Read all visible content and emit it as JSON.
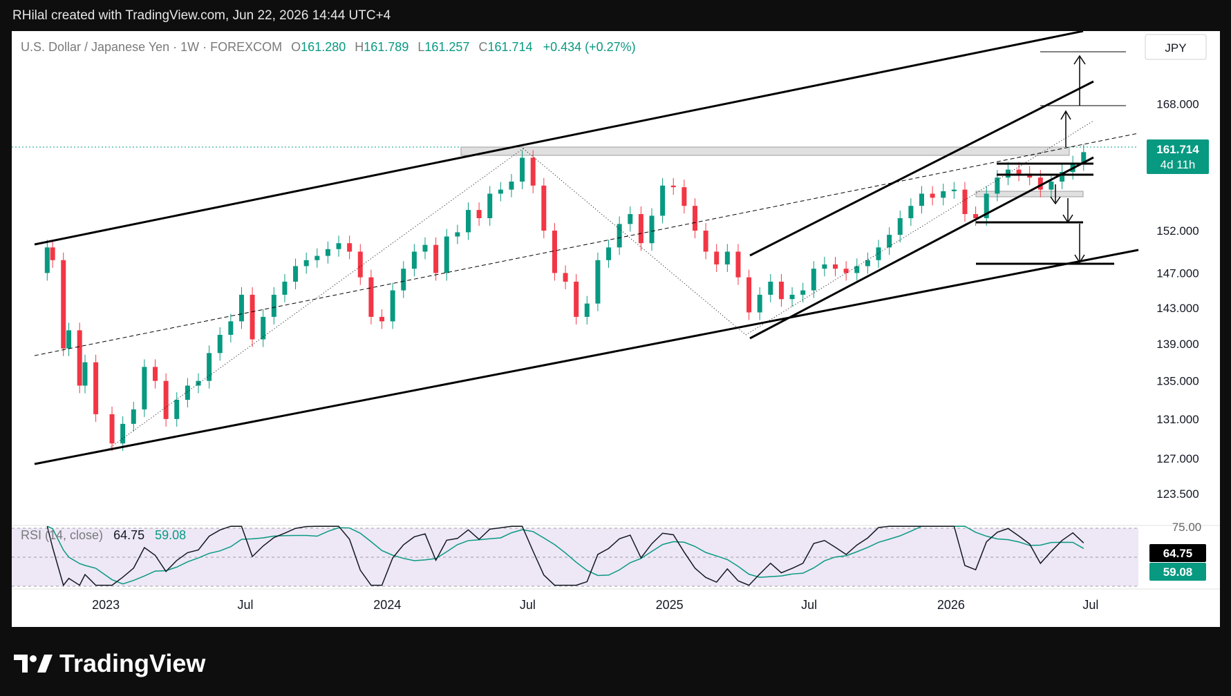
{
  "header": {
    "credit": "RHilal created with TradingView.com, Jun 22, 2026 14:44 UTC+4"
  },
  "legend": {
    "symbol": "U.S. Dollar / Japanese Yen · 1W · FOREXCOM",
    "open_label": "O",
    "open": "161.280",
    "high_label": "H",
    "high": "161.789",
    "low_label": "L",
    "low": "161.257",
    "close_label": "C",
    "close": "161.714",
    "change": "+0.434 (+0.27%)"
  },
  "rsi_legend": {
    "label": "RSI (14, close)",
    "rsi": "64.75",
    "ma": "59.08"
  },
  "price_axis": {
    "currency": "JPY",
    "ticks": [
      "168.000",
      "152.000",
      "147.000",
      "143.000",
      "139.000",
      "135.000",
      "131.000",
      "127.000",
      "123.500"
    ]
  },
  "price_badge": {
    "price": "161.714",
    "countdown": "4d 11h"
  },
  "rsi_axis": {
    "top_tick": "75.00",
    "rsi_value": "64.75",
    "ma_value": "59.08"
  },
  "time_axis": [
    "2023",
    "Jul",
    "2024",
    "Jul",
    "2025",
    "Jul",
    "2026",
    "Jul"
  ],
  "brand": {
    "name": "TradingView"
  },
  "colors": {
    "up": "#089981",
    "down": "#f23645",
    "rsi_line": "#131722",
    "rsi_ma": "#089981",
    "rsi_band": "#ede7f6"
  },
  "chart_data": {
    "type": "candlestick",
    "title": "U.S. Dollar / Japanese Yen · 1W · FOREXCOM",
    "x_range": [
      "2022-09",
      "2026-09"
    ],
    "ylim": [
      121.5,
      176
    ],
    "y_scale": "log",
    "points": [
      {
        "d": "2022-10-03",
        "c": 147
      },
      {
        "d": "2022-10-17",
        "c": 150
      },
      {
        "d": "2022-10-24",
        "c": 148.5
      },
      {
        "d": "2022-11-07",
        "c": 138.5
      },
      {
        "d": "2022-11-14",
        "c": 140.5
      },
      {
        "d": "2022-11-28",
        "c": 134.5
      },
      {
        "d": "2022-12-05",
        "c": 137
      },
      {
        "d": "2022-12-19",
        "c": 131.5
      },
      {
        "d": "2023-01-09",
        "c": 128.5
      },
      {
        "d": "2023-01-23",
        "c": 130.5
      },
      {
        "d": "2023-02-06",
        "c": 132
      },
      {
        "d": "2023-02-20",
        "c": 136.5
      },
      {
        "d": "2023-03-06",
        "c": 135
      },
      {
        "d": "2023-03-20",
        "c": 131
      },
      {
        "d": "2023-04-03",
        "c": 133
      },
      {
        "d": "2023-04-17",
        "c": 134.5
      },
      {
        "d": "2023-05-01",
        "c": 135
      },
      {
        "d": "2023-05-15",
        "c": 138
      },
      {
        "d": "2023-05-29",
        "c": 140
      },
      {
        "d": "2023-06-12",
        "c": 141.5
      },
      {
        "d": "2023-06-26",
        "c": 144.5
      },
      {
        "d": "2023-07-10",
        "c": 139.5
      },
      {
        "d": "2023-07-24",
        "c": 142
      },
      {
        "d": "2023-08-07",
        "c": 144.5
      },
      {
        "d": "2023-08-21",
        "c": 146
      },
      {
        "d": "2023-09-04",
        "c": 147.8
      },
      {
        "d": "2023-09-18",
        "c": 148.5
      },
      {
        "d": "2023-10-02",
        "c": 149
      },
      {
        "d": "2023-10-16",
        "c": 149.8
      },
      {
        "d": "2023-10-30",
        "c": 150.5
      },
      {
        "d": "2023-11-13",
        "c": 149.5
      },
      {
        "d": "2023-11-27",
        "c": 146.5
      },
      {
        "d": "2023-12-11",
        "c": 142
      },
      {
        "d": "2023-12-25",
        "c": 141.5
      },
      {
        "d": "2024-01-08",
        "c": 145
      },
      {
        "d": "2024-01-22",
        "c": 147.5
      },
      {
        "d": "2024-02-05",
        "c": 149.5
      },
      {
        "d": "2024-02-19",
        "c": 150.3
      },
      {
        "d": "2024-03-04",
        "c": 147
      },
      {
        "d": "2024-03-18",
        "c": 151.3
      },
      {
        "d": "2024-04-01",
        "c": 151.8
      },
      {
        "d": "2024-04-15",
        "c": 154.5
      },
      {
        "d": "2024-04-29",
        "c": 153.5
      },
      {
        "d": "2024-05-13",
        "c": 156.5
      },
      {
        "d": "2024-05-27",
        "c": 157
      },
      {
        "d": "2024-06-10",
        "c": 158
      },
      {
        "d": "2024-06-24",
        "c": 161
      },
      {
        "d": "2024-07-08",
        "c": 157.5
      },
      {
        "d": "2024-07-22",
        "c": 152
      },
      {
        "d": "2024-08-05",
        "c": 147
      },
      {
        "d": "2024-08-19",
        "c": 146
      },
      {
        "d": "2024-09-02",
        "c": 142
      },
      {
        "d": "2024-09-16",
        "c": 143.5
      },
      {
        "d": "2024-09-30",
        "c": 148.5
      },
      {
        "d": "2024-10-14",
        "c": 150
      },
      {
        "d": "2024-10-28",
        "c": 152.8
      },
      {
        "d": "2024-11-11",
        "c": 154
      },
      {
        "d": "2024-11-25",
        "c": 150.5
      },
      {
        "d": "2024-12-09",
        "c": 153.8
      },
      {
        "d": "2024-12-23",
        "c": 157.5
      },
      {
        "d": "2025-01-06",
        "c": 157.3
      },
      {
        "d": "2025-01-20",
        "c": 155
      },
      {
        "d": "2025-02-03",
        "c": 152
      },
      {
        "d": "2025-02-17",
        "c": 149.5
      },
      {
        "d": "2025-03-03",
        "c": 148
      },
      {
        "d": "2025-03-17",
        "c": 149.5
      },
      {
        "d": "2025-03-31",
        "c": 146.5
      },
      {
        "d": "2025-04-14",
        "c": 142.5
      },
      {
        "d": "2025-04-28",
        "c": 144.5
      },
      {
        "d": "2025-05-12",
        "c": 146
      },
      {
        "d": "2025-05-26",
        "c": 144
      },
      {
        "d": "2025-06-09",
        "c": 144.5
      },
      {
        "d": "2025-06-23",
        "c": 145
      },
      {
        "d": "2025-07-07",
        "c": 147.5
      },
      {
        "d": "2025-07-21",
        "c": 148
      },
      {
        "d": "2025-08-04",
        "c": 147.5
      },
      {
        "d": "2025-08-18",
        "c": 147
      },
      {
        "d": "2025-09-01",
        "c": 147.8
      },
      {
        "d": "2025-09-15",
        "c": 148.5
      },
      {
        "d": "2025-09-29",
        "c": 150
      },
      {
        "d": "2025-10-13",
        "c": 151.5
      },
      {
        "d": "2025-10-27",
        "c": 153.5
      },
      {
        "d": "2025-11-10",
        "c": 155
      },
      {
        "d": "2025-11-24",
        "c": 156.5
      },
      {
        "d": "2025-12-08",
        "c": 156
      },
      {
        "d": "2025-12-22",
        "c": 156.8
      },
      {
        "d": "2026-01-05",
        "c": 157
      },
      {
        "d": "2026-01-19",
        "c": 154
      },
      {
        "d": "2026-02-02",
        "c": 153.5
      },
      {
        "d": "2026-02-16",
        "c": 156.5
      },
      {
        "d": "2026-03-02",
        "c": 158.5
      },
      {
        "d": "2026-03-16",
        "c": 159.5
      },
      {
        "d": "2026-03-30",
        "c": 159
      },
      {
        "d": "2026-04-13",
        "c": 158.5
      },
      {
        "d": "2026-04-27",
        "c": 157
      },
      {
        "d": "2026-05-11",
        "c": 158
      },
      {
        "d": "2026-05-25",
        "c": 159.2
      },
      {
        "d": "2026-06-08",
        "c": 160.3
      },
      {
        "d": "2026-06-22",
        "c": 161.714
      }
    ],
    "current": {
      "open": 161.28,
      "high": 161.789,
      "low": 161.257,
      "close": 161.714,
      "change": 0.434,
      "change_pct": 0.27
    },
    "rsi": {
      "length": 14,
      "value": 64.75,
      "ma": 59.08,
      "ylim": [
        20,
        80
      ]
    }
  }
}
